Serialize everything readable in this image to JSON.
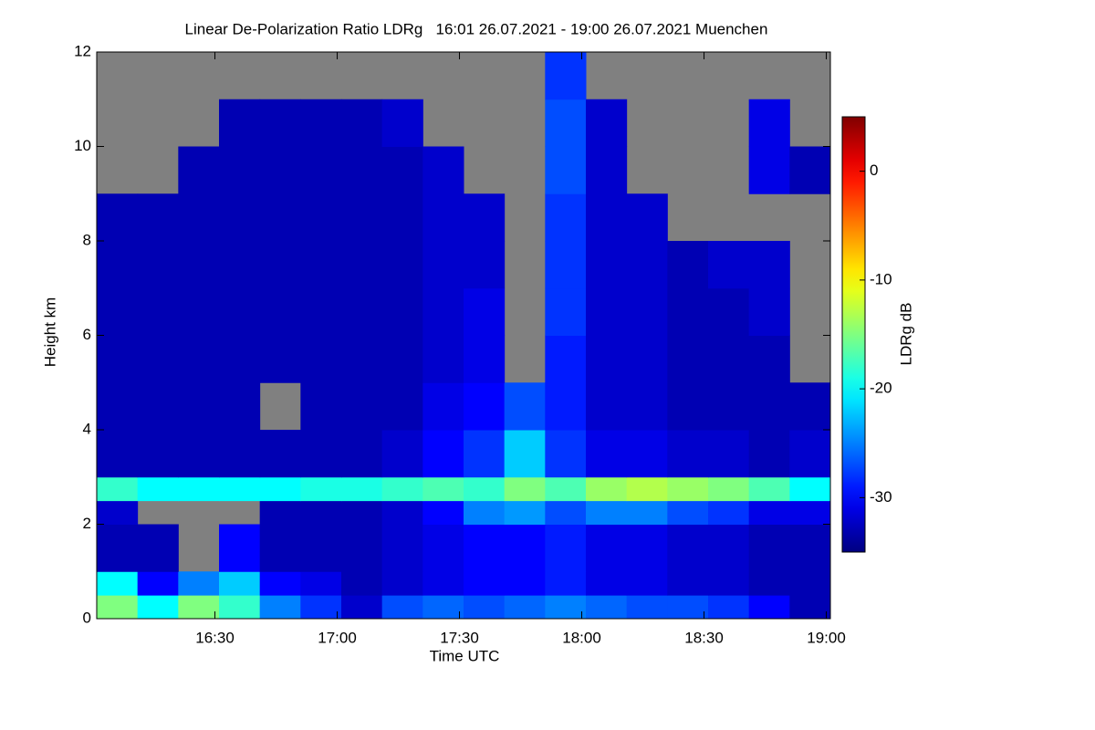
{
  "chart_data": {
    "type": "heatmap",
    "title": "Linear De-Polarization Ratio LDRg   16:01 26.07.2021 - 19:00 26.07.2021 Muenchen",
    "xlabel": "Time UTC",
    "ylabel": "Height km",
    "colorbar_label": "LDRg dB",
    "colormap": "jet",
    "missing_color": "#808080",
    "x": [
      "16:01",
      "16:11",
      "16:21",
      "16:31",
      "16:41",
      "16:51",
      "17:01",
      "17:11",
      "17:21",
      "17:31",
      "17:41",
      "17:51",
      "18:01",
      "18:11",
      "18:21",
      "18:31",
      "18:41",
      "18:51"
    ],
    "y": [
      0,
      0.5,
      1,
      2,
      2.5,
      3,
      4,
      5,
      6,
      7,
      8,
      9,
      10,
      11
    ],
    "z": [
      [
        -15,
        -20,
        -15,
        -18,
        -25,
        -28,
        -32,
        -27,
        -26,
        -27,
        -26,
        -25,
        -26,
        -27,
        -27,
        -28,
        -30,
        -33
      ],
      [
        -20,
        -30,
        -25,
        -22,
        -30,
        -31,
        -33,
        -32,
        -31,
        -30,
        -30,
        -29,
        -31,
        -31,
        -32,
        -32,
        -33,
        -33
      ],
      [
        -33,
        -33,
        null,
        -30,
        -33,
        -33,
        -33,
        -32,
        -31,
        -30,
        -30,
        -29,
        -31,
        -31,
        -32,
        -32,
        -33,
        -33
      ],
      [
        -32,
        null,
        null,
        null,
        -33,
        -33,
        -33,
        -32,
        -30,
        -25,
        -24,
        -27,
        -25,
        -25,
        -27,
        -28,
        -31,
        -31
      ],
      [
        -18,
        -20,
        -20,
        -20,
        -20,
        -19,
        -19,
        -18,
        -17,
        -18,
        -15,
        -17,
        -14,
        -13,
        -14,
        -15,
        -17,
        -20
      ],
      [
        -33,
        -33,
        -33,
        -33,
        -33,
        -33,
        -33,
        -32,
        -30,
        -28,
        -22,
        -28,
        -31,
        -31,
        -32,
        -32,
        -33,
        -32
      ],
      [
        -33,
        -33,
        -33,
        -33,
        null,
        -33,
        -33,
        -33,
        -31,
        -30,
        -27,
        -29,
        -32,
        -32,
        -33,
        -33,
        -33,
        -33
      ],
      [
        -33,
        -33,
        -33,
        -33,
        -33,
        -33,
        -33,
        -33,
        -32,
        -31,
        null,
        -29,
        -32,
        -32,
        -33,
        -33,
        -33,
        null
      ],
      [
        -33,
        -33,
        -33,
        -33,
        -33,
        -33,
        -33,
        -33,
        -32,
        -31,
        null,
        -28,
        -32,
        -32,
        -33,
        -33,
        -32,
        null
      ],
      [
        -33,
        -33,
        -33,
        -33,
        -33,
        -33,
        -33,
        -33,
        -32,
        -32,
        null,
        -28,
        -32,
        -32,
        -33,
        -32,
        -32,
        null
      ],
      [
        -33,
        -33,
        -33,
        -33,
        -33,
        -33,
        -33,
        -33,
        -32,
        -32,
        null,
        -28,
        -32,
        -32,
        null,
        null,
        null,
        null
      ],
      [
        null,
        null,
        -33,
        -33,
        -33,
        -33,
        -33,
        -33,
        -32,
        null,
        null,
        -27,
        -32,
        null,
        null,
        null,
        -31,
        -33
      ],
      [
        null,
        null,
        null,
        -33,
        -33,
        -33,
        -33,
        -32,
        null,
        null,
        null,
        -27,
        -32,
        null,
        null,
        null,
        -31,
        null
      ],
      [
        null,
        null,
        null,
        null,
        null,
        null,
        null,
        null,
        null,
        null,
        null,
        -28,
        null,
        null,
        null,
        null,
        null,
        null
      ]
    ],
    "xlim": [
      "16:01",
      "19:01"
    ],
    "xticks": [
      "16:30",
      "17:00",
      "17:30",
      "18:00",
      "18:30",
      "19:00"
    ],
    "ylim": [
      0,
      12
    ],
    "yticks": [
      0,
      2,
      4,
      6,
      8,
      10,
      12
    ],
    "zlim": [
      -35,
      5
    ],
    "zticks": [
      0,
      -10,
      -20,
      -30
    ]
  }
}
